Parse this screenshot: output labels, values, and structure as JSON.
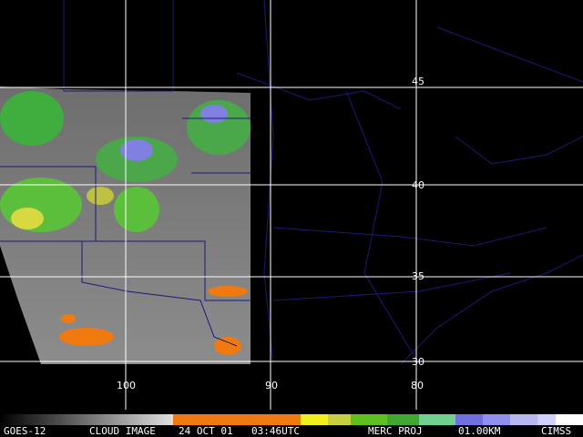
{
  "grid": {
    "latitude_labels": [
      "45",
      "40",
      "35",
      "30"
    ],
    "longitude_labels": [
      "100",
      "90",
      "80"
    ]
  },
  "caption": {
    "satellite": "GOES-12",
    "product": "CLOUD IMAGE",
    "date": "24 OCT 01",
    "time": "03:46UTC",
    "projection": "MERC PROJ",
    "resolution": "01.00KM",
    "source": "CIMSS"
  }
}
